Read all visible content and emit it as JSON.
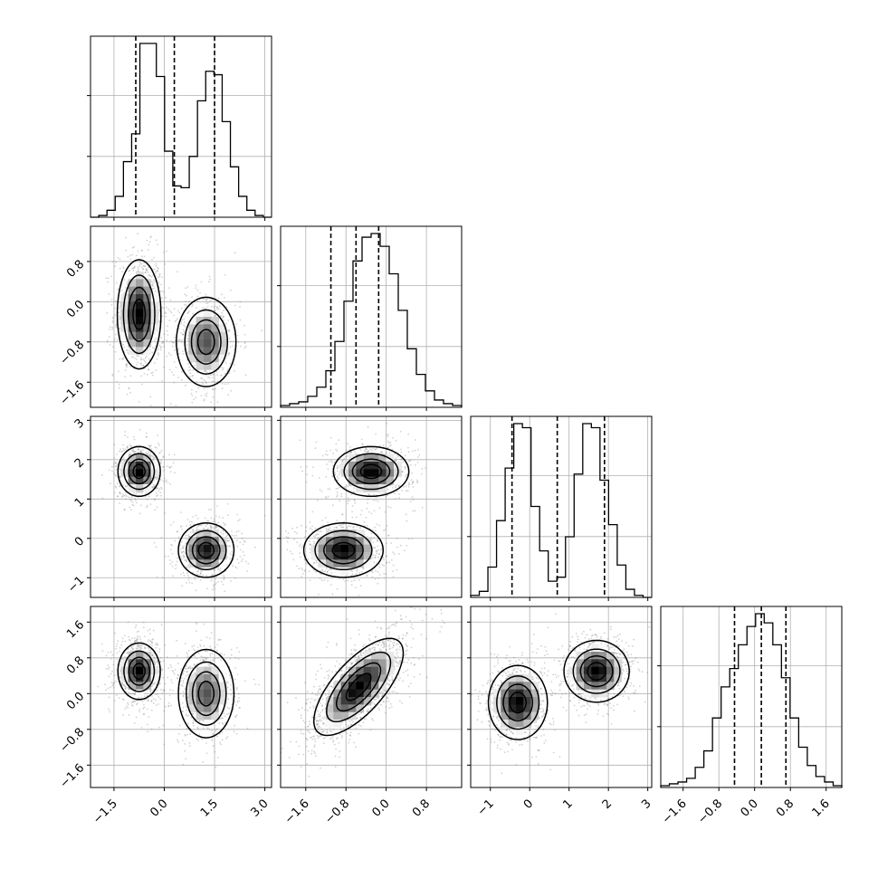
{
  "chart_data": {
    "type": "corner",
    "grid": true,
    "variables": [
      {
        "range": [
          -2.2,
          3.2
        ],
        "ticks": [
          -1.5,
          0.0,
          1.5,
          3.0
        ],
        "tick_labels": [
          "−1.5",
          "0.0",
          "1.5",
          "3.0"
        ],
        "quantiles": [
          -0.85,
          0.3,
          1.5
        ],
        "hist": [
          0,
          1,
          4,
          12,
          32,
          48,
          100,
          100,
          81,
          38,
          18,
          17,
          35,
          67,
          84,
          82,
          55,
          29,
          12,
          4,
          1,
          0
        ]
      },
      {
        "range": [
          -2.1,
          1.5
        ],
        "ticks": [
          -1.6,
          -0.8,
          0.0,
          0.8
        ],
        "tick_labels": [
          "−1.6",
          "−0.8",
          "0.0",
          "0.8"
        ],
        "quantiles": [
          -1.1,
          -0.6,
          -0.15
        ],
        "hist": [
          1,
          2,
          3,
          6,
          11,
          20,
          36,
          58,
          80,
          93,
          95,
          88,
          73,
          53,
          32,
          18,
          9,
          4,
          2,
          1
        ]
      },
      {
        "range": [
          -1.5,
          3.1
        ],
        "ticks": [
          -1,
          0,
          1,
          2,
          3
        ],
        "tick_labels": [
          "−1",
          "0",
          "1",
          "2",
          "3"
        ],
        "quantiles": [
          -0.45,
          0.7,
          1.9
        ],
        "hist": [
          1,
          3,
          15,
          38,
          64,
          86,
          84,
          45,
          23,
          8,
          10,
          30,
          61,
          86,
          84,
          58,
          36,
          16,
          4,
          1,
          0
        ]
      },
      {
        "range": [
          -2.1,
          1.95
        ],
        "ticks": [
          -1.6,
          -0.8,
          0.0,
          0.8,
          1.6
        ],
        "tick_labels": [
          "−1.6",
          "−0.8",
          "0.0",
          "0.8",
          "1.6"
        ],
        "quantiles": [
          -0.45,
          0.15,
          0.7
        ],
        "hist": [
          1,
          2,
          3,
          5,
          11,
          20,
          38,
          55,
          65,
          78,
          88,
          95,
          90,
          78,
          60,
          38,
          22,
          12,
          6,
          3,
          1
        ]
      }
    ],
    "pairs": [
      {
        "row": 1,
        "col": 0,
        "modes": [
          {
            "x": -0.75,
            "y": -0.25,
            "sx": 0.33,
            "sy": 0.55,
            "rho": 0.0,
            "w": 1.0
          },
          {
            "x": 1.25,
            "y": -0.8,
            "sx": 0.45,
            "sy": 0.45,
            "rho": 0.0,
            "w": 0.75
          }
        ]
      },
      {
        "row": 2,
        "col": 0,
        "modes": [
          {
            "x": -0.75,
            "y": 1.7,
            "sx": 0.32,
            "sy": 0.32,
            "rho": 0.0,
            "w": 1.0
          },
          {
            "x": 1.25,
            "y": -0.3,
            "sx": 0.42,
            "sy": 0.35,
            "rho": 0.0,
            "w": 0.95
          }
        ]
      },
      {
        "row": 3,
        "col": 0,
        "modes": [
          {
            "x": -0.75,
            "y": 0.5,
            "sx": 0.32,
            "sy": 0.32,
            "rho": 0.0,
            "w": 1.0
          },
          {
            "x": 1.25,
            "y": 0.0,
            "sx": 0.42,
            "sy": 0.5,
            "rho": 0.0,
            "w": 0.75
          }
        ]
      },
      {
        "row": 2,
        "col": 1,
        "modes": [
          {
            "x": -0.3,
            "y": 1.7,
            "sx": 0.38,
            "sy": 0.32,
            "rho": 0.0,
            "w": 1.0
          },
          {
            "x": -0.85,
            "y": -0.3,
            "sx": 0.4,
            "sy": 0.35,
            "rho": 0.0,
            "w": 1.0
          }
        ]
      },
      {
        "row": 3,
        "col": 1,
        "modes": [
          {
            "x": -0.55,
            "y": 0.15,
            "sx": 0.45,
            "sy": 0.55,
            "rho": 0.7,
            "w": 1.0
          }
        ]
      },
      {
        "row": 3,
        "col": 2,
        "modes": [
          {
            "x": -0.3,
            "y": -0.2,
            "sx": 0.38,
            "sy": 0.42,
            "rho": 0.0,
            "w": 1.0
          },
          {
            "x": 1.7,
            "y": 0.5,
            "sx": 0.42,
            "sy": 0.35,
            "rho": 0.0,
            "w": 1.0
          }
        ]
      }
    ]
  }
}
